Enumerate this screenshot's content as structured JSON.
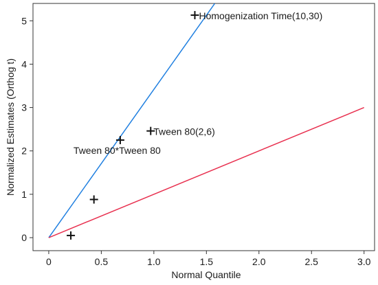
{
  "chart_data": {
    "type": "scatter",
    "title": "",
    "xlabel": "Normal Quantile",
    "ylabel": "Normalized Estimates (Orthog t)",
    "xlim": [
      -0.15,
      3.1
    ],
    "ylim": [
      -0.3,
      5.4
    ],
    "xticks": [
      "0",
      "0.5",
      "1.0",
      "1.5",
      "2.0",
      "2.5",
      "3.0"
    ],
    "xtick_values": [
      0,
      0.5,
      1.0,
      1.5,
      2.0,
      2.5,
      3.0
    ],
    "yticks": [
      "0",
      "1",
      "2",
      "3",
      "4",
      "5"
    ],
    "ytick_values": [
      0,
      1,
      2,
      3,
      4,
      5
    ],
    "grid": false,
    "points": [
      {
        "x": 0.21,
        "y": 0.05,
        "label": ""
      },
      {
        "x": 0.43,
        "y": 0.88,
        "label": ""
      },
      {
        "x": 0.68,
        "y": 2.25,
        "label": "Tween 80*Tween 80"
      },
      {
        "x": 0.97,
        "y": 2.46,
        "label": "Tween 80(2,6)"
      },
      {
        "x": 1.39,
        "y": 5.13,
        "label": "Homogenization Time(10,30)"
      }
    ],
    "lines": [
      {
        "color": "#1f7fe0",
        "x": [
          0,
          1.58
        ],
        "y": [
          0,
          5.4
        ]
      },
      {
        "color": "#e8304f",
        "x": [
          0,
          3.0
        ],
        "y": [
          0,
          3.0
        ]
      }
    ]
  }
}
